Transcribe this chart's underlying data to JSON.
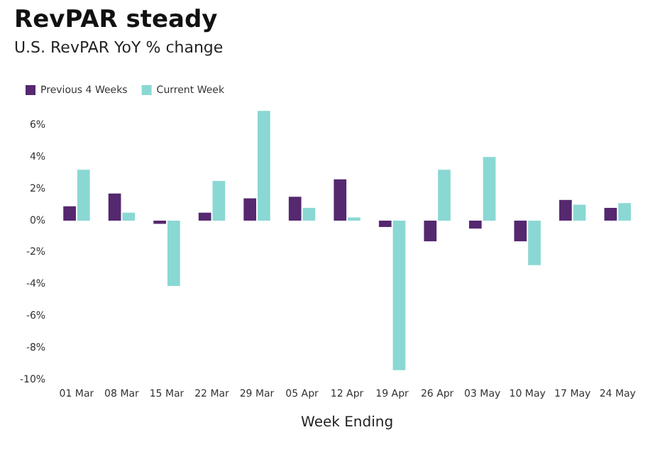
{
  "chart_data": {
    "type": "bar",
    "title": "RevPAR steady",
    "subtitle": "U.S. RevPAR YoY % change",
    "xlabel": "Week Ending",
    "categories": [
      "01 Mar",
      "08 Mar",
      "15 Mar",
      "22 Mar",
      "29 Mar",
      "05 Apr",
      "12 Apr",
      "19 Apr",
      "26 Apr",
      "03 May",
      "10 May",
      "17 May",
      "24 May"
    ],
    "series": [
      {
        "name": "Previous 4 Weeks",
        "color": "#55286f",
        "values": [
          0.9,
          1.7,
          -0.2,
          0.5,
          1.4,
          1.5,
          2.6,
          -0.4,
          -1.3,
          -0.5,
          -1.3,
          1.3,
          0.8
        ]
      },
      {
        "name": "Current Week",
        "color": "#8ad8d3",
        "values": [
          3.2,
          0.5,
          -4.1,
          2.5,
          6.9,
          0.8,
          0.2,
          -9.4,
          3.2,
          4.0,
          -2.8,
          1.0,
          1.1
        ]
      }
    ],
    "ylim": [
      -10,
      7
    ],
    "yticks": [
      {
        "value": -10,
        "label": "-10%"
      },
      {
        "value": -8,
        "label": "-8%"
      },
      {
        "value": -6,
        "label": "-6%"
      },
      {
        "value": -4,
        "label": "-4%"
      },
      {
        "value": -2,
        "label": "-2%"
      },
      {
        "value": 0,
        "label": "0%"
      },
      {
        "value": 2,
        "label": "2%"
      },
      {
        "value": 4,
        "label": "4%"
      },
      {
        "value": 6,
        "label": "6%"
      }
    ],
    "grid": false,
    "legend": "top left"
  }
}
